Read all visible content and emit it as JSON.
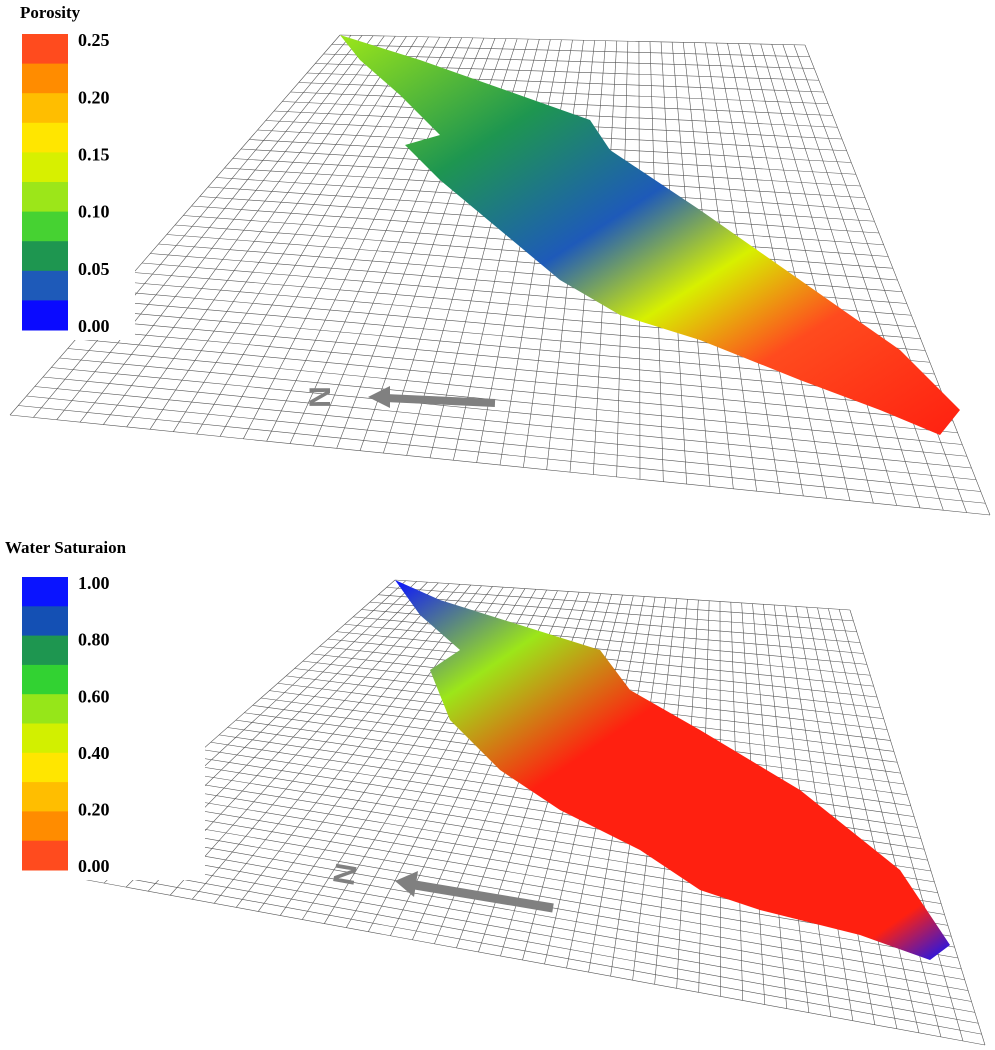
{
  "panels": [
    {
      "colorbar": {
        "title": "Porosity",
        "labels": [
          "0.25",
          "0.20",
          "0.15",
          "0.10",
          "0.05",
          "0.00"
        ],
        "colors": [
          "#ff4b1e",
          "#ff8c00",
          "#ffbe00",
          "#ffe600",
          "#d7f000",
          "#9ce619",
          "#46d232",
          "#1e9650",
          "#1e5ab9",
          "#0a0aff"
        ]
      },
      "north": "N"
    },
    {
      "colorbar": {
        "title": "Water Saturaion",
        "labels": [
          "1.00",
          "0.80",
          "0.60",
          "0.40",
          "0.20",
          "0.00"
        ],
        "colors": [
          "#0a14ff",
          "#1450b4",
          "#1e9650",
          "#32d232",
          "#96e619",
          "#d2f000",
          "#ffe600",
          "#ffbe00",
          "#ff8c00",
          "#ff4b1e"
        ]
      },
      "north": "N"
    }
  ]
}
